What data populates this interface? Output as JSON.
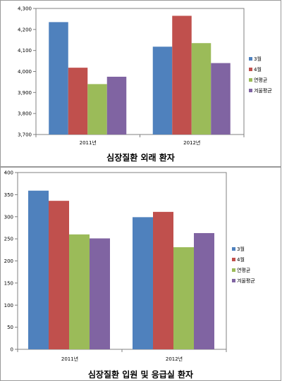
{
  "legend_labels": [
    "3월",
    "4월",
    "연평균",
    "겨울평균"
  ],
  "colors": [
    "#4f81bd",
    "#c0504d",
    "#9bbb59",
    "#8064a2"
  ],
  "chart_data": [
    {
      "type": "bar",
      "title": "심장질환 외래 환자",
      "categories": [
        "2011년",
        "2012년"
      ],
      "ylim": [
        3700,
        4300
      ],
      "yticks": [
        "3,700",
        "3,800",
        "3,900",
        "4,000",
        "4,100",
        "4,200",
        "4,300"
      ],
      "series": [
        {
          "name": "3월",
          "values": [
            4235,
            4118
          ]
        },
        {
          "name": "4월",
          "values": [
            4018,
            4265
          ]
        },
        {
          "name": "연평균",
          "values": [
            3940,
            4135
          ]
        },
        {
          "name": "겨울평균",
          "values": [
            3975,
            4040
          ]
        }
      ],
      "legend": "right",
      "grid": false
    },
    {
      "type": "bar",
      "title": "심장질환 입원 및 응급실 환자",
      "categories": [
        "2011년",
        "2012년"
      ],
      "ylim": [
        0,
        400
      ],
      "yticks": [
        "0",
        "50",
        "100",
        "150",
        "200",
        "250",
        "300",
        "350",
        "400"
      ],
      "series": [
        {
          "name": "3월",
          "values": [
            359,
            299
          ]
        },
        {
          "name": "4월",
          "values": [
            336,
            311
          ]
        },
        {
          "name": "연평균",
          "values": [
            260,
            231
          ]
        },
        {
          "name": "겨울평균",
          "values": [
            251,
            263
          ]
        }
      ],
      "legend": "right",
      "grid": false
    }
  ]
}
